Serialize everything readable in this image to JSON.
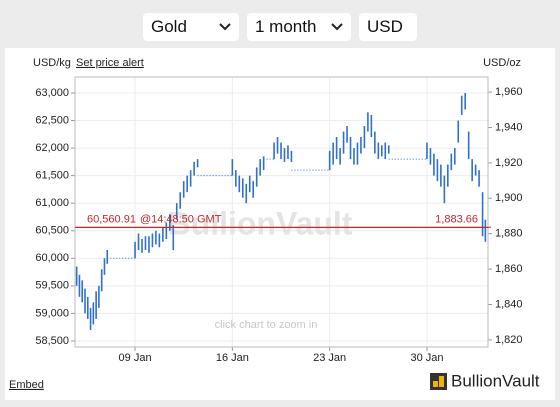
{
  "controls": {
    "metal": "Gold",
    "period": "1 month",
    "currency": "USD"
  },
  "chart_data": {
    "type": "range-bar",
    "left_axis_label": "USD/kg",
    "set_price_alert": "Set price alert",
    "right_axis_label": "USD/oz",
    "zoom_hint": "click chart to zoom in",
    "watermark": "BullionVault",
    "grid": true,
    "xlim": [
      4.68,
      34.39
    ],
    "xticks": [
      {
        "value": 9,
        "label": "09 Jan"
      },
      {
        "value": 16,
        "label": "16 Jan"
      },
      {
        "value": 23,
        "label": "23 Jan"
      },
      {
        "value": 30,
        "label": "30 Jan"
      }
    ],
    "ylim": [
      58390,
      63290
    ],
    "yticks": [
      {
        "value": 58500,
        "label": "58,500"
      },
      {
        "value": 59000,
        "label": "59,000"
      },
      {
        "value": 59500,
        "label": "59,500"
      },
      {
        "value": 60000,
        "label": "60,000"
      },
      {
        "value": 60500,
        "label": "60,500"
      },
      {
        "value": 61000,
        "label": "61,000"
      },
      {
        "value": 61500,
        "label": "61,500"
      },
      {
        "value": 62000,
        "label": "62,000"
      },
      {
        "value": 62500,
        "label": "62,500"
      },
      {
        "value": 63000,
        "label": "63,000"
      }
    ],
    "y2lim": [
      1816,
      1968.5
    ],
    "y2ticks": [
      {
        "value": 1820,
        "label": "1,820"
      },
      {
        "value": 1840,
        "label": "1,840"
      },
      {
        "value": 1860,
        "label": "1,860"
      },
      {
        "value": 1880,
        "label": "1,880"
      },
      {
        "value": 1900,
        "label": "1,900"
      },
      {
        "value": 1920,
        "label": "1,920"
      },
      {
        "value": 1940,
        "label": "1,940"
      },
      {
        "value": 1960,
        "label": "1,960"
      }
    ],
    "series": [
      {
        "color": "#2f6fd0",
        "x": [
          4.8,
          5.0,
          5.2,
          5.4,
          5.6,
          5.8,
          6.0,
          6.2,
          6.4,
          6.6,
          6.8,
          7.0,
          9.0,
          9.25,
          9.5,
          9.75,
          10.0,
          10.25,
          10.5,
          10.75,
          11.0,
          11.25,
          11.5,
          11.75,
          12.0,
          12.25,
          12.5,
          12.75,
          13.0,
          13.25,
          13.5,
          16.0,
          16.25,
          16.5,
          16.75,
          17.0,
          17.25,
          17.5,
          17.75,
          18.0,
          18.25,
          19.0,
          19.25,
          19.5,
          19.75,
          20.0,
          20.25,
          23.0,
          23.25,
          23.5,
          23.75,
          24.0,
          24.25,
          24.5,
          24.75,
          25.0,
          25.25,
          25.5,
          25.75,
          26.0,
          26.25,
          26.5,
          26.75,
          27.0,
          27.25,
          30.0,
          30.25,
          30.5,
          30.75,
          31.0,
          31.25,
          31.5,
          31.75,
          32.0,
          32.25,
          32.5,
          32.75,
          33.0,
          33.25,
          33.5,
          33.75,
          34.0,
          34.2
        ],
        "low": [
          59500,
          59300,
          59200,
          59000,
          58900,
          58700,
          58800,
          58900,
          59100,
          59400,
          59700,
          59900,
          60000,
          60150,
          60100,
          60150,
          60100,
          60200,
          60250,
          60200,
          60300,
          60350,
          60500,
          60150,
          60700,
          60900,
          61100,
          61200,
          61300,
          61500,
          61650,
          61500,
          61300,
          61200,
          61100,
          61000,
          61200,
          61100,
          61300,
          61500,
          61600,
          61800,
          61900,
          61800,
          61750,
          61800,
          61750,
          61600,
          61700,
          61800,
          61700,
          61900,
          62100,
          61800,
          61700,
          61700,
          61900,
          62000,
          62300,
          62200,
          61900,
          61800,
          61850,
          61800,
          61900,
          61800,
          61700,
          61500,
          61400,
          61300,
          61000,
          61300,
          61600,
          61700,
          62100,
          62600,
          62700,
          61800,
          61400,
          61500,
          61300,
          60400,
          60300
        ],
        "high": [
          59850,
          59700,
          59600,
          59450,
          59300,
          59100,
          59200,
          59400,
          59500,
          59800,
          60000,
          60150,
          60300,
          60450,
          60350,
          60400,
          60400,
          60450,
          60500,
          60450,
          60550,
          60650,
          60800,
          60600,
          61000,
          61200,
          61400,
          61500,
          61600,
          61750,
          61800,
          61800,
          61600,
          61500,
          61450,
          61350,
          61500,
          61400,
          61650,
          61800,
          61850,
          62100,
          62200,
          62100,
          62000,
          62050,
          61950,
          61950,
          62100,
          62200,
          62000,
          62300,
          62400,
          62200,
          62000,
          62100,
          62200,
          62400,
          62650,
          62600,
          62300,
          62100,
          62050,
          62100,
          62050,
          62100,
          62000,
          61900,
          61800,
          61700,
          61500,
          61700,
          61900,
          62000,
          62500,
          62950,
          63000,
          62300,
          61800,
          61700,
          61600,
          61200,
          60700
        ]
      }
    ],
    "current": {
      "value": 60560.91,
      "label": "60,560.91",
      "time": "@14:48:50 GMT",
      "value_oz": 1883.66,
      "label_oz": "1,883.66"
    }
  },
  "footer": {
    "embed": "Embed",
    "logo": "BullionVault"
  }
}
